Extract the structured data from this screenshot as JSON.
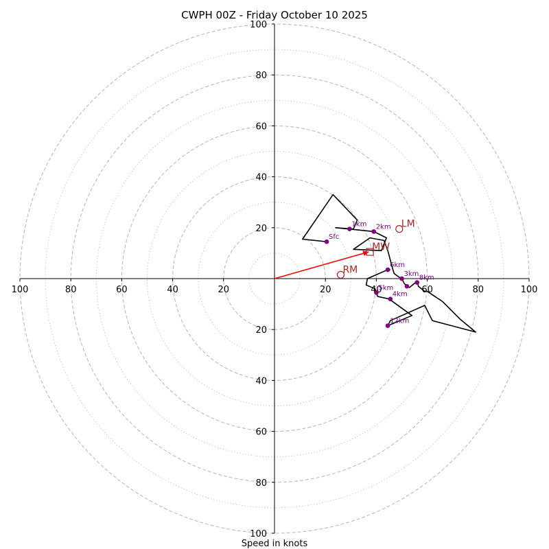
{
  "chart_data": {
    "type": "hodograph",
    "title": "CWPH 00Z - Friday October 10 2025",
    "xlabel": "Speed in knots",
    "units": "knots",
    "range": [
      -100,
      100
    ],
    "major_rings": [
      20,
      40,
      60,
      80,
      100
    ],
    "minor_rings": [
      10,
      30,
      50,
      70,
      90
    ],
    "x_ticks": [
      "100",
      "80",
      "60",
      "40",
      "20",
      "20",
      "40",
      "60",
      "80",
      "100"
    ],
    "x_tick_values": [
      -100,
      -80,
      -60,
      -40,
      -20,
      20,
      40,
      60,
      80,
      100
    ],
    "y_ticks": [
      "100",
      "80",
      "60",
      "40",
      "20",
      "20",
      "40",
      "60",
      "80",
      "100"
    ],
    "y_tick_values": [
      100,
      80,
      60,
      40,
      20,
      -20,
      -40,
      -60,
      -80,
      -100
    ],
    "trace": [
      [
        20.5,
        14.5
      ],
      [
        11,
        15.5
      ],
      [
        23,
        33
      ],
      [
        32.5,
        23
      ],
      [
        31,
        19.5
      ],
      [
        24,
        20
      ],
      [
        39,
        18.5
      ],
      [
        44,
        16
      ],
      [
        42,
        11
      ],
      [
        31,
        11.5
      ],
      [
        37.5,
        16
      ],
      [
        43,
        15
      ],
      [
        44.5,
        11
      ],
      [
        46.5,
        3.5
      ],
      [
        47,
        2
      ],
      [
        49,
        0.5
      ],
      [
        50,
        0
      ],
      [
        51,
        -2
      ],
      [
        53,
        -3.5
      ],
      [
        56,
        -1
      ],
      [
        56.5,
        -3
      ],
      [
        59,
        -5
      ],
      [
        60,
        -5
      ],
      [
        66,
        -9
      ],
      [
        73,
        -16
      ],
      [
        79,
        -21
      ],
      [
        62,
        -16.5
      ],
      [
        59,
        -10.5
      ],
      [
        50,
        -14.5
      ],
      [
        45.5,
        -16.5
      ],
      [
        44.5,
        -18.5
      ],
      [
        54,
        -14.5
      ],
      [
        45,
        -8
      ],
      [
        40.5,
        -7
      ],
      [
        39.5,
        -4
      ],
      [
        36,
        -2.5
      ],
      [
        36.5,
        0
      ],
      [
        44.5,
        3.5
      ],
      [
        45.5,
        3.5
      ]
    ],
    "height_markers": [
      {
        "label": "Sfc",
        "x": 20.5,
        "y": 14.5
      },
      {
        "label": "1km",
        "x": 29.5,
        "y": 19.5
      },
      {
        "label": "2km",
        "x": 39,
        "y": 18.5
      },
      {
        "label": "3km",
        "x": 50,
        "y": 0
      },
      {
        "label": "4km",
        "x": 45.5,
        "y": -8
      },
      {
        "label": "5km",
        "x": 40,
        "y": -5.5
      },
      {
        "label": "6km",
        "x": 44.5,
        "y": 3.5
      },
      {
        "label": "8km",
        "x": 56,
        "y": -1.5
      },
      {
        "label": "",
        "x": 52,
        "y": -3
      },
      {
        "label": "12km",
        "x": 44.5,
        "y": -18.5
      }
    ],
    "storm_motion": [
      {
        "label": "RM",
        "x": 26,
        "y": 1.5,
        "marker": "circle"
      },
      {
        "label": "LM",
        "x": 49,
        "y": 19.5,
        "marker": "circle"
      },
      {
        "label": "MW",
        "x": 37.5,
        "y": 10.5,
        "marker": "square"
      }
    ],
    "mean_wind_vector": {
      "x": 37,
      "y": 10.5
    },
    "colors": {
      "trace": "#000000",
      "height_marker": "#800080",
      "storm_marker": "#b22222",
      "vector": "#ff0000",
      "grid": "#bbbbbb"
    }
  }
}
